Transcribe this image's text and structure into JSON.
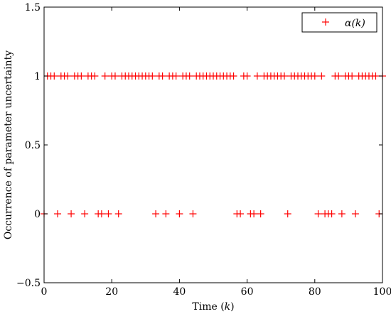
{
  "chart_data": {
    "type": "scatter",
    "xlabel": "Time (k)",
    "ylabel": "Occurrence of parameter uncertainty",
    "xlim": [
      0,
      100
    ],
    "ylim": [
      -0.5,
      1.5
    ],
    "x_ticks": [
      "0",
      "20",
      "40",
      "60",
      "80",
      "100"
    ],
    "y_ticks": [
      "−0.5",
      "0",
      "0.5",
      "1",
      "1.5"
    ],
    "grid": false,
    "legend_position": "top-right",
    "marker": "+",
    "color": "#ff0000",
    "series": [
      {
        "name": "α(k)",
        "x": [
          0,
          1,
          2,
          3,
          4,
          5,
          6,
          7,
          8,
          9,
          10,
          11,
          12,
          13,
          14,
          15,
          16,
          17,
          18,
          19,
          20,
          21,
          22,
          23,
          24,
          25,
          26,
          27,
          28,
          29,
          30,
          31,
          32,
          33,
          34,
          35,
          36,
          37,
          38,
          39,
          40,
          41,
          42,
          43,
          44,
          45,
          46,
          47,
          48,
          49,
          50,
          51,
          52,
          53,
          54,
          55,
          56,
          57,
          58,
          59,
          60,
          61,
          62,
          63,
          64,
          65,
          66,
          67,
          68,
          69,
          70,
          71,
          72,
          73,
          74,
          75,
          76,
          77,
          78,
          79,
          80,
          81,
          82,
          83,
          84,
          85,
          86,
          87,
          88,
          89,
          90,
          91,
          92,
          93,
          94,
          95,
          96,
          97,
          98,
          99,
          100
        ],
        "y": [
          0,
          1,
          1,
          1,
          0,
          1,
          1,
          1,
          0,
          1,
          1,
          1,
          0,
          1,
          1,
          1,
          0,
          0,
          1,
          0,
          1,
          1,
          0,
          1,
          1,
          1,
          1,
          1,
          1,
          1,
          1,
          1,
          1,
          0,
          1,
          1,
          0,
          1,
          1,
          1,
          0,
          1,
          1,
          1,
          0,
          1,
          1,
          1,
          1,
          1,
          1,
          1,
          1,
          1,
          1,
          1,
          1,
          0,
          0,
          1,
          1,
          0,
          0,
          1,
          0,
          1,
          1,
          1,
          1,
          1,
          1,
          1,
          0,
          1,
          1,
          1,
          1,
          1,
          1,
          1,
          1,
          0,
          1,
          0,
          0,
          0,
          1,
          1,
          0,
          1,
          1,
          1,
          0,
          1,
          1,
          1,
          1,
          1,
          1,
          0,
          1
        ]
      }
    ]
  }
}
